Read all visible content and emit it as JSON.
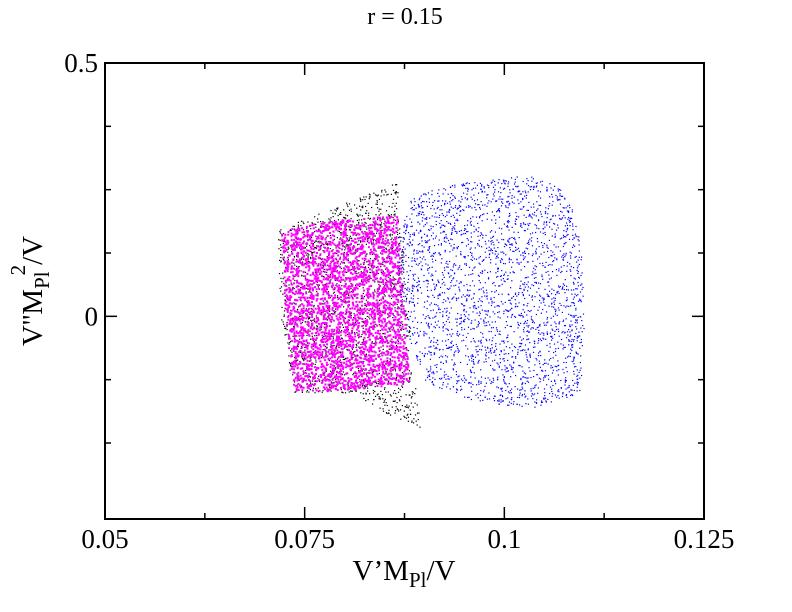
{
  "chart_data": {
    "type": "scatter",
    "title": "r = 0.15",
    "xlabel": {
      "main": "V’M",
      "sub": "Pl",
      "tail": "/V"
    },
    "ylabel": {
      "main": "V''M",
      "sub": "Pl",
      "sup": "2",
      "tail": "/V"
    },
    "xlim": [
      0.05,
      0.125
    ],
    "ylim": [
      -0.4,
      0.5
    ],
    "x_ticks": [
      0.05,
      0.075,
      0.1,
      0.125
    ],
    "x_tick_labels": [
      "0.05",
      "0.075",
      "0.1",
      "0.125"
    ],
    "y_ticks": [
      0,
      0.5
    ],
    "y_tick_labels": [
      "0",
      "0.5"
    ],
    "grid": false,
    "series": [
      {
        "color": "#0000ff",
        "region": "x 0.086-0.110, y -0.18-0.28 (broad diffuse cloud, right)",
        "outline": [
          [
            0.0885,
            0.24
          ],
          [
            0.095,
            0.265
          ],
          [
            0.1,
            0.275
          ],
          [
            0.104,
            0.28
          ],
          [
            0.108,
            0.24
          ],
          [
            0.1095,
            0.15
          ],
          [
            0.11,
            0.0
          ],
          [
            0.1095,
            -0.15
          ],
          [
            0.104,
            -0.18
          ],
          [
            0.097,
            -0.17
          ],
          [
            0.09,
            -0.13
          ],
          [
            0.087,
            0.0
          ],
          [
            0.0865,
            0.15
          ]
        ]
      },
      {
        "color": "#000000",
        "region": "x 0.0715-0.0895, y -0.22-0.27 (band behind magenta)",
        "outline": [
          [
            0.0715,
            0.17
          ],
          [
            0.076,
            0.2
          ],
          [
            0.081,
            0.23
          ],
          [
            0.0865,
            0.265
          ],
          [
            0.0875,
            0.1
          ],
          [
            0.0885,
            -0.1
          ],
          [
            0.0895,
            -0.22
          ],
          [
            0.085,
            -0.19
          ],
          [
            0.08,
            -0.15
          ],
          [
            0.0735,
            -0.15
          ],
          [
            0.072,
            0.0
          ]
        ]
      },
      {
        "color": "#ff00ff",
        "region": "x 0.072-0.088, y -0.15-0.20 (dense core)",
        "outline": [
          [
            0.072,
            0.17
          ],
          [
            0.078,
            0.19
          ],
          [
            0.0865,
            0.2
          ],
          [
            0.0875,
            0.0
          ],
          [
            0.088,
            -0.13
          ],
          [
            0.08,
            -0.145
          ],
          [
            0.0735,
            -0.145
          ],
          [
            0.0725,
            0.0
          ]
        ]
      }
    ]
  }
}
